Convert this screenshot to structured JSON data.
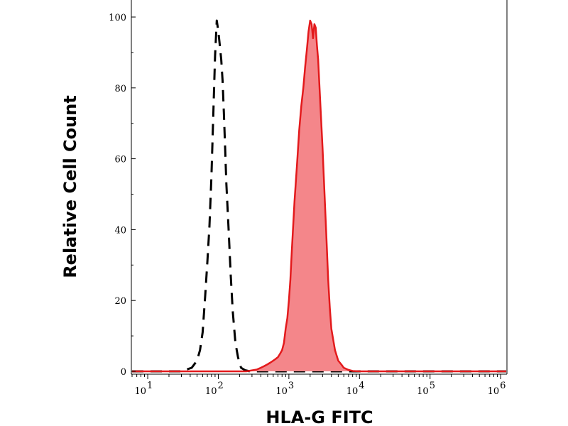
{
  "chart_data": {
    "type": "area",
    "title": "",
    "xlabel": "HLA-G FITC",
    "ylabel": "Relative Cell Count",
    "x_scale": "log",
    "xlim": [
      6,
      1200000
    ],
    "ylim": [
      0,
      103
    ],
    "x_ticks": [
      {
        "value": 10,
        "base": "10",
        "exp": "1"
      },
      {
        "value": 100,
        "base": "10",
        "exp": "2"
      },
      {
        "value": 1000,
        "base": "10",
        "exp": "3"
      },
      {
        "value": 10000,
        "base": "10",
        "exp": "4"
      },
      {
        "value": 100000,
        "base": "10",
        "exp": "5"
      },
      {
        "value": 1000000,
        "base": "10",
        "exp": "6"
      }
    ],
    "y_ticks": [
      {
        "value": 0,
        "label": "0"
      },
      {
        "value": 20,
        "label": "20"
      },
      {
        "value": 40,
        "label": "40"
      },
      {
        "value": 60,
        "label": "60"
      },
      {
        "value": 80,
        "label": "80"
      },
      {
        "value": 100,
        "label": "100"
      }
    ],
    "grid": false,
    "legend": "none",
    "series": [
      {
        "style": "dashed-line",
        "color": "#000000",
        "x": [
          6,
          30,
          42,
          50,
          55,
          60,
          65,
          70,
          75,
          80,
          85,
          90,
          95,
          100,
          105,
          110,
          115,
          120,
          125,
          130,
          140,
          150,
          160,
          175,
          190,
          210,
          240,
          280,
          1200000
        ],
        "y": [
          0,
          0,
          1,
          3,
          6,
          11,
          21,
          31,
          41,
          55,
          73,
          89,
          99,
          96,
          92,
          88,
          82,
          73,
          63,
          53,
          40,
          27,
          17,
          8,
          4,
          1,
          0.3,
          0,
          0
        ]
      },
      {
        "style": "filled-area",
        "color": "#e31a1c",
        "fill": "#f4868a",
        "x": [
          6,
          250,
          350,
          400,
          450,
          500,
          550,
          600,
          650,
          700,
          750,
          800,
          850,
          900,
          950,
          1000,
          1050,
          1100,
          1200,
          1300,
          1400,
          1500,
          1600,
          1700,
          1800,
          1900,
          2000,
          2100,
          2200,
          2300,
          2400,
          2500,
          2600,
          2800,
          3000,
          3200,
          3400,
          3600,
          3800,
          4000,
          4500,
          5000,
          5500,
          6000,
          7000,
          8000,
          10000,
          12000,
          1200000
        ],
        "y": [
          0,
          0,
          0.5,
          1,
          1.5,
          2,
          2.5,
          3,
          3.5,
          4,
          5,
          6,
          8,
          12,
          15,
          20,
          26,
          34,
          48,
          58,
          68,
          75,
          80,
          86,
          91,
          96,
          99,
          98,
          94,
          98,
          97,
          92,
          88,
          75,
          63,
          50,
          38,
          26,
          18,
          12,
          6,
          3,
          2,
          1,
          0.4,
          0.1,
          0,
          0,
          0
        ]
      }
    ]
  }
}
